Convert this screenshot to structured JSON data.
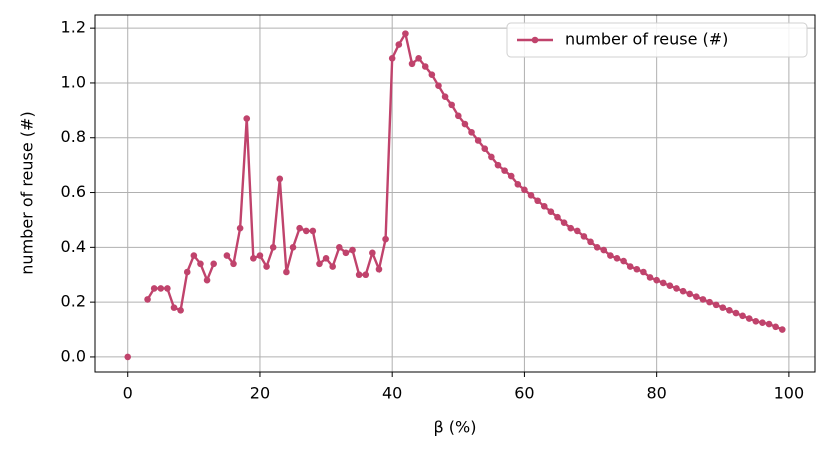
{
  "chart_data": {
    "type": "line",
    "xlabel": "β (%)",
    "ylabel": "number of reuse (#)",
    "x": [
      0,
      1,
      2,
      3,
      4,
      5,
      6,
      7,
      8,
      9,
      10,
      11,
      12,
      13,
      14,
      15,
      16,
      17,
      18,
      19,
      20,
      21,
      22,
      23,
      24,
      25,
      26,
      27,
      28,
      29,
      30,
      31,
      32,
      33,
      34,
      35,
      36,
      37,
      38,
      39,
      40,
      41,
      42,
      43,
      44,
      45,
      46,
      47,
      48,
      49,
      50,
      51,
      52,
      53,
      54,
      55,
      56,
      57,
      58,
      59,
      60,
      61,
      62,
      63,
      64,
      65,
      66,
      67,
      68,
      69,
      70,
      71,
      72,
      73,
      74,
      75,
      76,
      77,
      78,
      79,
      80,
      81,
      82,
      83,
      84,
      85,
      86,
      87,
      88,
      89,
      90,
      91,
      92,
      93,
      94,
      95,
      96,
      97,
      98,
      99
    ],
    "series": [
      {
        "name": "number of reuse (#)",
        "color": "#c0436c",
        "values": [
          0,
          null,
          null,
          0.21,
          0.25,
          0.25,
          0.25,
          0.18,
          0.17,
          0.31,
          0.37,
          0.34,
          0.28,
          0.34,
          null,
          0.37,
          0.34,
          0.47,
          0.87,
          0.36,
          0.37,
          0.33,
          0.4,
          0.65,
          0.31,
          0.4,
          0.47,
          0.46,
          0.46,
          0.34,
          0.36,
          0.33,
          0.4,
          0.38,
          0.39,
          0.3,
          0.3,
          0.38,
          0.32,
          0.43,
          1.09,
          1.14,
          1.18,
          1.07,
          1.09,
          1.06,
          1.03,
          0.99,
          0.95,
          0.92,
          0.88,
          0.85,
          0.82,
          0.79,
          0.76,
          0.73,
          0.7,
          0.68,
          0.66,
          0.63,
          0.61,
          0.59,
          0.57,
          0.55,
          0.53,
          0.51,
          0.49,
          0.47,
          0.46,
          0.44,
          0.42,
          0.4,
          0.39,
          0.37,
          0.36,
          0.35,
          0.33,
          0.32,
          0.31,
          0.29,
          0.28,
          0.27,
          0.26,
          0.25,
          0.24,
          0.23,
          0.22,
          0.21,
          0.2,
          0.19,
          0.18,
          0.17,
          0.16,
          0.15,
          0.14,
          0.13,
          0.125,
          0.12,
          0.11,
          0.1
        ]
      }
    ],
    "xlim": [
      -4.95,
      103.95
    ],
    "xticks": [
      0,
      20,
      40,
      60,
      80,
      100
    ],
    "ylim": [
      -0.055,
      1.248
    ],
    "yticks": [
      {
        "value": 0,
        "label": "0.0"
      },
      {
        "value": 0.2,
        "label": "0.2"
      },
      {
        "value": 0.4,
        "label": "0.4"
      },
      {
        "value": 0.6,
        "label": "0.6"
      },
      {
        "value": 0.8,
        "label": "0.8"
      },
      {
        "value": 1.0,
        "label": "1.0"
      },
      {
        "value": 1.2,
        "label": "1.2"
      }
    ],
    "grid": true,
    "legend": "upper right"
  }
}
